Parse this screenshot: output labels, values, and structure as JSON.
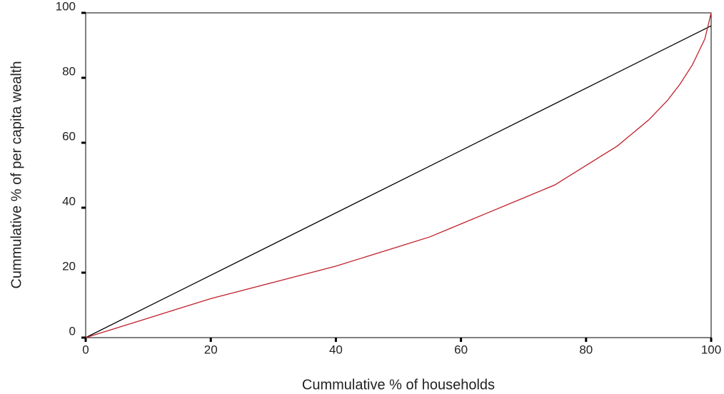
{
  "chart_data": {
    "type": "line",
    "x_label": "Cummulative % of households",
    "y_label": "Cummulative % of per capita wealth",
    "xlim": [
      0,
      100
    ],
    "ylim": [
      0,
      100
    ],
    "xticks": [
      0,
      20,
      40,
      60,
      80,
      100
    ],
    "yticks": [
      0,
      20,
      40,
      60,
      80,
      100
    ],
    "series": [
      {
        "color": "#000000",
        "x": [
          0,
          100
        ],
        "values": [
          0,
          96
        ]
      },
      {
        "color": "#c0202a",
        "x": [
          0,
          5,
          10,
          15,
          20,
          25,
          30,
          35,
          40,
          45,
          50,
          55,
          60,
          65,
          70,
          75,
          80,
          85,
          90,
          93,
          95,
          97,
          98,
          99,
          100
        ],
        "values": [
          0,
          3,
          6,
          9,
          12,
          14.5,
          17,
          19.5,
          22,
          25,
          28,
          31,
          35,
          39,
          43,
          47,
          53,
          59,
          67,
          73,
          78,
          84,
          88,
          92,
          100
        ]
      }
    ]
  }
}
